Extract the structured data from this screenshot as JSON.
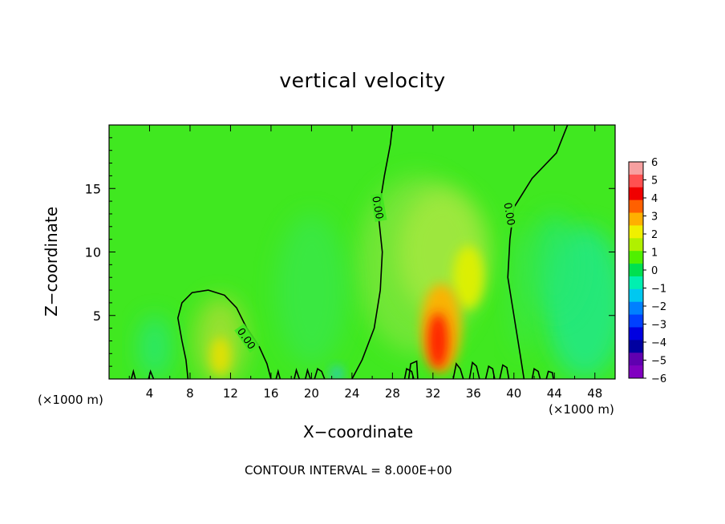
{
  "chart_data": {
    "type": "heatmap",
    "title": "vertical velocity",
    "xlabel": "X−coordinate",
    "ylabel": "Z−coordinate",
    "x_unit_label": "(×1000 m)",
    "x_unit_label_right": "(×1000 m)",
    "xlim": [
      0,
      50
    ],
    "ylim": [
      0,
      20
    ],
    "x_ticks": [
      "4",
      "8",
      "12",
      "16",
      "20",
      "24",
      "28",
      "32",
      "36",
      "40",
      "44",
      "48"
    ],
    "y_ticks": [
      "5",
      "10",
      "15"
    ],
    "contour_labels": [
      "0.00",
      "0.00",
      "0.00"
    ],
    "colorbar": {
      "ticks": [
        "6",
        "5",
        "4",
        "3",
        "2",
        "1",
        "0",
        "−1",
        "−2",
        "−3",
        "−4",
        "−5",
        "−6"
      ],
      "colors": [
        "#f7a0a0",
        "#ff5050",
        "#f00000",
        "#ff6000",
        "#ffb000",
        "#f0f000",
        "#b0f000",
        "#50f000",
        "#00e050",
        "#00f0b0",
        "#00c8f0",
        "#0080ff",
        "#0040ff",
        "#0000e0",
        "#0000a0",
        "#6000b0",
        "#8000c0"
      ]
    },
    "features": [
      {
        "name": "updraft core",
        "x": 32.5,
        "z": 3.0,
        "value": 4.5
      },
      {
        "name": "secondary updraft",
        "x": 35.5,
        "z": 8.0,
        "value": 2.0
      },
      {
        "name": "updraft",
        "x": 11.0,
        "z": 2.0,
        "value": 1.5
      },
      {
        "name": "downdraft",
        "x": 47.0,
        "z": 6.0,
        "value": -1.5
      },
      {
        "name": "downdraft",
        "x": 4.5,
        "z": 2.5,
        "value": -0.8
      }
    ],
    "footer": "CONTOUR INTERVAL = 8.000E+00"
  }
}
